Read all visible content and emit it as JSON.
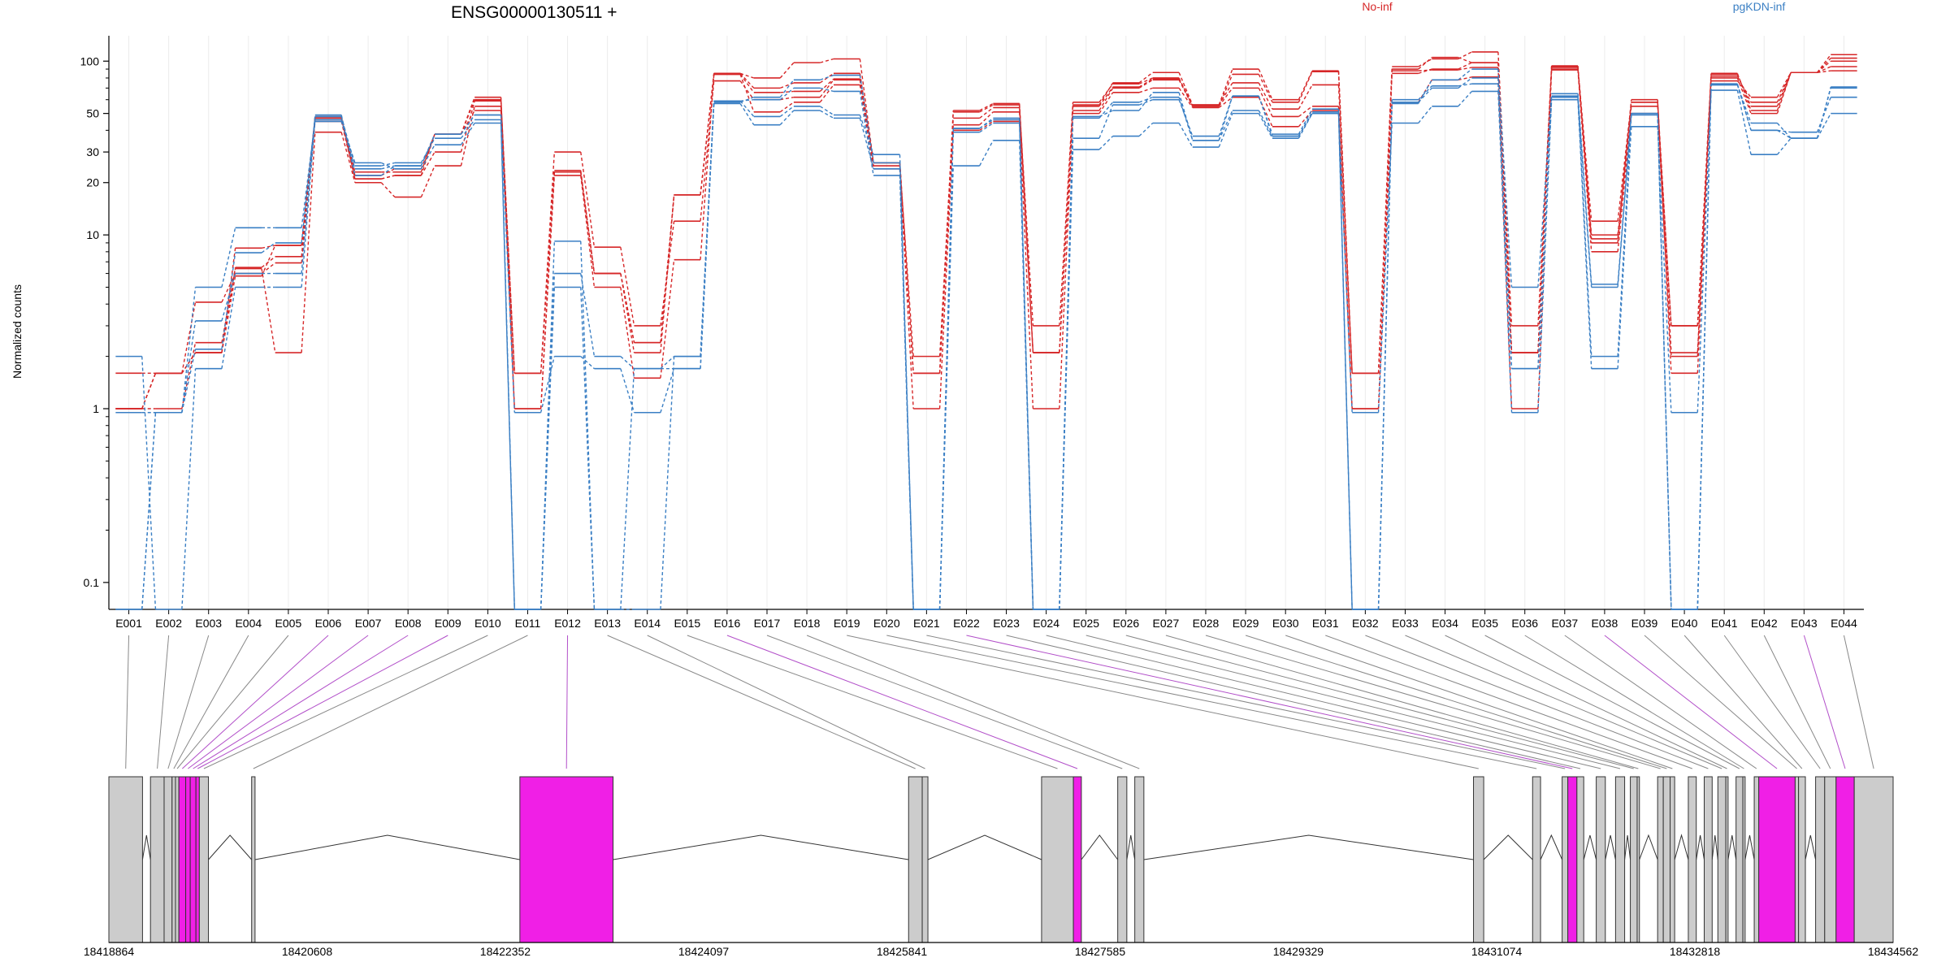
{
  "chart_data": {
    "type": "line",
    "title": "ENSG00000130511 +",
    "ylabel": "Normalized counts",
    "xlabel": "",
    "y_scale": "log",
    "y_ticks": [
      0.1,
      1,
      10,
      20,
      30,
      50,
      100
    ],
    "y_tick_labels": [
      "0.1",
      "1",
      "10",
      "20",
      "30",
      "50",
      "100"
    ],
    "ylim": [
      0.07,
      140
    ],
    "grid": "vertical",
    "legend_placement": "top",
    "colors": {
      "No-inf": "#d62728",
      "pgKDN-inf": "#3a7fc4",
      "exon": "#cccccc",
      "exon_highlight": "#f01fe6",
      "link": "#888888",
      "link_highlight": "#b24fc9"
    },
    "categories": [
      "E001",
      "E002",
      "E003",
      "E004",
      "E005",
      "E006",
      "E007",
      "E008",
      "E009",
      "E010",
      "E011",
      "E012",
      "E013",
      "E014",
      "E015",
      "E016",
      "E017",
      "E018",
      "E019",
      "E020",
      "E021",
      "E022",
      "E023",
      "E024",
      "E025",
      "E026",
      "E027",
      "E028",
      "E029",
      "E030",
      "E031",
      "E032",
      "E033",
      "E034",
      "E035",
      "E036",
      "E037",
      "E038",
      "E039",
      "E040",
      "E041",
      "E042",
      "E043",
      "E044"
    ],
    "highlighted_exons": [
      "E006",
      "E007",
      "E008",
      "E009",
      "E012",
      "E016",
      "E022",
      "E038",
      "E043"
    ],
    "series": [
      {
        "name": "No-inf",
        "group": "No-inf",
        "values": [
          1,
          1,
          2.4,
          6.4,
          2.1,
          39,
          20,
          16.5,
          25,
          55,
          1,
          22,
          5,
          1.5,
          7.2,
          84,
          51,
          58,
          73,
          24,
          1,
          40,
          45,
          1,
          50,
          66,
          70,
          54,
          62,
          42,
          52,
          1,
          58,
          78,
          81,
          1,
          89,
          8,
          50,
          2,
          80,
          50,
          86,
          88
        ]
      },
      {
        "name": "No-inf",
        "group": "No-inf",
        "values": [
          1.6,
          1.6,
          4.1,
          6,
          6.9,
          45,
          21,
          22,
          30,
          59,
          1.6,
          30,
          8.5,
          3,
          12,
          77,
          60,
          62,
          78,
          25,
          2,
          47,
          54,
          3,
          58,
          74,
          80,
          55,
          84,
          58,
          87,
          1.6,
          93,
          103,
          113,
          3,
          92,
          12,
          58,
          3,
          84,
          55,
          86,
          109
        ]
      },
      {
        "name": "No-inf",
        "group": "No-inf",
        "values": [
          1,
          1.6,
          2.1,
          8.4,
          8.7,
          47,
          23,
          23,
          38,
          62,
          1,
          23,
          6,
          2.1,
          17,
          85,
          70,
          75,
          85,
          26,
          1.6,
          51,
          56,
          2.1,
          52,
          70,
          78,
          55,
          70,
          48,
          55,
          1,
          85,
          90,
          98,
          2.1,
          94,
          9,
          60,
          1.6,
          82,
          58,
          86,
          100
        ]
      },
      {
        "name": "No-inf",
        "group": "No-inf",
        "values": [
          1,
          1.6,
          2.1,
          6.5,
          7.5,
          48,
          22,
          24,
          38,
          52,
          1.6,
          23.5,
          6,
          2.4,
          17,
          85,
          80,
          98,
          103,
          26,
          1.6,
          52,
          57,
          2.1,
          56,
          75,
          86,
          56,
          90,
          60,
          88,
          1.6,
          90,
          105,
          98,
          2.1,
          90,
          10,
          55,
          3,
          77,
          62,
          86,
          104
        ]
      },
      {
        "name": "No-inf",
        "group": "No-inf",
        "values": [
          1,
          1.6,
          2.1,
          5.8,
          8.7,
          47,
          21,
          22,
          38,
          60,
          1.6,
          23,
          6,
          2.4,
          17,
          84,
          66,
          67,
          79,
          26,
          1.6,
          43,
          51,
          2.1,
          55,
          71,
          79,
          56,
          75,
          53,
          73,
          1.6,
          88,
          89,
          92,
          2.1,
          93,
          9.5,
          58,
          2.1,
          85,
          52,
          86,
          93
        ]
      },
      {
        "name": "pgKDN-inf",
        "group": "pgKDN-inf",
        "values": [
          2,
          0.07,
          1.7,
          5,
          5,
          46,
          24,
          25,
          38,
          49,
          0.95,
          2,
          1.7,
          0.95,
          1.7,
          57,
          43,
          52,
          47,
          24,
          0.07,
          25,
          35,
          0.07,
          31,
          37,
          44,
          32,
          50,
          36,
          50,
          0.95,
          44,
          55,
          67,
          0.95,
          60,
          1.7,
          42,
          0.95,
          68,
          29,
          36,
          50
        ]
      },
      {
        "name": "pgKDN-inf",
        "group": "pgKDN-inf",
        "values": [
          0.07,
          0.95,
          2.2,
          7.9,
          9,
          48,
          25,
          26,
          36,
          46,
          0.07,
          9.2,
          0.07,
          0.07,
          2,
          59,
          48,
          55,
          49,
          29,
          0.07,
          41,
          47,
          0.07,
          36,
          56,
          60,
          37,
          63,
          38,
          53,
          0.07,
          60,
          72,
          74,
          1.7,
          63,
          2,
          49,
          0.07,
          73,
          40,
          39,
          62
        ]
      },
      {
        "name": "pgKDN-inf",
        "group": "pgKDN-inf",
        "values": [
          0.95,
          0.95,
          3.2,
          6,
          6,
          49,
          22,
          25,
          38,
          49,
          0.07,
          6,
          2,
          1.7,
          1.7,
          59,
          60,
          70,
          67,
          22,
          0.07,
          41,
          46,
          0.07,
          47,
          58,
          62,
          35,
          52,
          37,
          50,
          0.07,
          58,
          70,
          80,
          1.7,
          62,
          5,
          50,
          0.07,
          74,
          40,
          36,
          71
        ]
      },
      {
        "name": "pgKDN-inf",
        "group": "pgKDN-inf",
        "values": [
          0.07,
          0.95,
          5,
          11,
          11,
          45,
          26,
          24,
          33,
          44,
          0.07,
          5,
          0.07,
          1.7,
          2,
          58,
          62,
          78,
          83,
          26,
          0.07,
          39,
          44,
          0.07,
          48,
          52,
          66,
          35,
          63,
          37,
          51,
          0.07,
          57,
          78,
          90,
          5,
          65,
          5.2,
          50,
          0.07,
          73,
          44,
          36,
          70
        ]
      }
    ],
    "gene_model": {
      "genomic_ticks": [
        18418864,
        18420608,
        18422352,
        18424097,
        18425841,
        18427585,
        18429329,
        18431074,
        18432818,
        18434562
      ],
      "genomic_tick_labels": [
        "18418864",
        "18420608",
        "18422352",
        "18424097",
        "18425841",
        "18427585",
        "18429329",
        "18431074",
        "18432818",
        "18434562"
      ],
      "range": [
        18418864,
        18434562
      ],
      "exons": [
        {
          "id": "E001",
          "start": 18418864,
          "end": 18419160
        },
        {
          "id": "E002",
          "start": 18419230,
          "end": 18419350
        },
        {
          "id": "E003",
          "start": 18419350,
          "end": 18419420
        },
        {
          "id": "E004",
          "start": 18419420,
          "end": 18419450
        },
        {
          "id": "E005",
          "start": 18419450,
          "end": 18419480
        },
        {
          "id": "E006",
          "start": 18419480,
          "end": 18419540
        },
        {
          "id": "E007",
          "start": 18419540,
          "end": 18419580
        },
        {
          "id": "E008",
          "start": 18419580,
          "end": 18419630
        },
        {
          "id": "E009",
          "start": 18419630,
          "end": 18419660
        },
        {
          "id": "E010",
          "start": 18419660,
          "end": 18419740
        },
        {
          "id": "E011",
          "start": 18420120,
          "end": 18420150
        },
        {
          "id": "E012",
          "start": 18422480,
          "end": 18423300
        },
        {
          "id": "E013",
          "start": 18425900,
          "end": 18426020
        },
        {
          "id": "E014",
          "start": 18426020,
          "end": 18426070
        },
        {
          "id": "E015",
          "start": 18427070,
          "end": 18427350
        },
        {
          "id": "E016",
          "start": 18427350,
          "end": 18427420
        },
        {
          "id": "E017",
          "start": 18427740,
          "end": 18427820
        },
        {
          "id": "E018",
          "start": 18427890,
          "end": 18427970
        },
        {
          "id": "E019",
          "start": 18430870,
          "end": 18430960
        },
        {
          "id": "E020",
          "start": 18431390,
          "end": 18431460
        },
        {
          "id": "E021",
          "start": 18431650,
          "end": 18431700
        },
        {
          "id": "E022",
          "start": 18431700,
          "end": 18431780
        },
        {
          "id": "E023",
          "start": 18431780,
          "end": 18431840
        },
        {
          "id": "E024",
          "start": 18431950,
          "end": 18432030
        },
        {
          "id": "E025",
          "start": 18432120,
          "end": 18432200
        },
        {
          "id": "E026",
          "start": 18432250,
          "end": 18432310
        },
        {
          "id": "E027",
          "start": 18432310,
          "end": 18432330
        },
        {
          "id": "E028",
          "start": 18432490,
          "end": 18432540
        },
        {
          "id": "E029",
          "start": 18432540,
          "end": 18432600
        },
        {
          "id": "E030",
          "start": 18432600,
          "end": 18432640
        },
        {
          "id": "E031",
          "start": 18432760,
          "end": 18432830
        },
        {
          "id": "E032",
          "start": 18432900,
          "end": 18432970
        },
        {
          "id": "E033",
          "start": 18433020,
          "end": 18433090
        },
        {
          "id": "E034",
          "start": 18433090,
          "end": 18433110
        },
        {
          "id": "E035",
          "start": 18433180,
          "end": 18433240
        },
        {
          "id": "E036",
          "start": 18433240,
          "end": 18433260
        },
        {
          "id": "E037",
          "start": 18433340,
          "end": 18433380
        },
        {
          "id": "E038",
          "start": 18433380,
          "end": 18433700
        },
        {
          "id": "E039",
          "start": 18433700,
          "end": 18433730
        },
        {
          "id": "E040",
          "start": 18433730,
          "end": 18433790
        },
        {
          "id": "E041",
          "start": 18433880,
          "end": 18433960
        },
        {
          "id": "E042",
          "start": 18433960,
          "end": 18434060
        },
        {
          "id": "E043",
          "start": 18434060,
          "end": 18434220
        },
        {
          "id": "E044",
          "start": 18434220,
          "end": 18434562
        }
      ]
    }
  }
}
